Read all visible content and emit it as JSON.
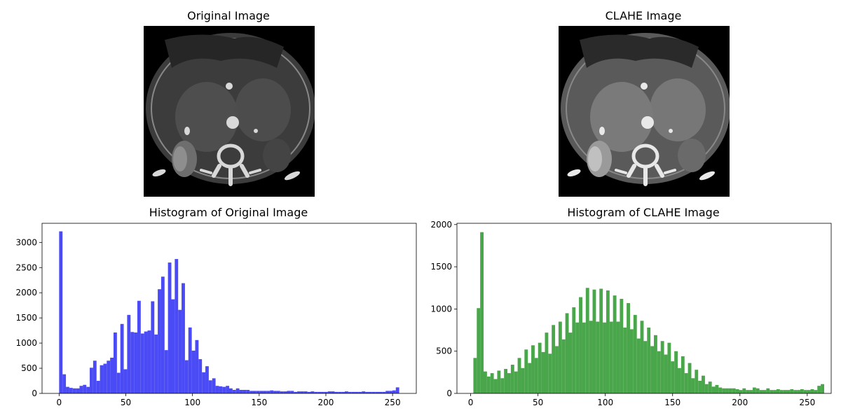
{
  "chart_data": [
    {
      "type": "image",
      "title": "Original Image"
    },
    {
      "type": "image",
      "title": "CLAHE Image"
    },
    {
      "type": "bar",
      "title": "Histogram of Original Image",
      "xlabel": "",
      "ylabel": "",
      "xlim": [
        -12.8,
        267.8
      ],
      "ylim": [
        0,
        3380
      ],
      "xticks": [
        0,
        50,
        100,
        150,
        200,
        250
      ],
      "yticks": [
        0,
        500,
        1000,
        1500,
        2000,
        2500,
        3000
      ],
      "bin_width": 2.55,
      "color": "#4b4bf6",
      "bin_start": 0,
      "values": [
        3220,
        380,
        130,
        110,
        100,
        100,
        150,
        170,
        130,
        510,
        650,
        250,
        560,
        590,
        650,
        710,
        1210,
        410,
        1380,
        480,
        1560,
        1220,
        1210,
        1840,
        1190,
        1230,
        1250,
        1830,
        1170,
        2070,
        2320,
        860,
        2600,
        1870,
        2670,
        1660,
        2190,
        660,
        1310,
        850,
        1060,
        680,
        420,
        540,
        260,
        300,
        150,
        140,
        130,
        150,
        100,
        70,
        100,
        70,
        70,
        70,
        50,
        50,
        50,
        50,
        50,
        50,
        60,
        50,
        50,
        40,
        40,
        50,
        50,
        30,
        40,
        40,
        40,
        30,
        40,
        30,
        30,
        30,
        30,
        40,
        40,
        30,
        30,
        30,
        40,
        30,
        30,
        30,
        30,
        40,
        30,
        30,
        30,
        30,
        30,
        30,
        50,
        50,
        60,
        120
      ]
    },
    {
      "type": "bar",
      "title": "Histogram of CLAHE Image",
      "xlabel": "",
      "ylabel": "",
      "xlim": [
        -10.2,
        267.8
      ],
      "ylim": [
        0,
        2015
      ],
      "xticks": [
        0,
        50,
        100,
        150,
        200,
        250
      ],
      "yticks": [
        0,
        500,
        1000,
        1500,
        2000
      ],
      "bin_width": 2.53,
      "color": "#4aa64a",
      "bin_start": 2,
      "values": [
        420,
        1010,
        1910,
        260,
        200,
        240,
        170,
        270,
        180,
        290,
        240,
        340,
        260,
        420,
        300,
        520,
        360,
        570,
        420,
        600,
        490,
        720,
        470,
        810,
        560,
        850,
        640,
        950,
        720,
        1020,
        840,
        1140,
        840,
        1250,
        860,
        1230,
        850,
        1240,
        840,
        1220,
        850,
        1160,
        850,
        1120,
        780,
        1070,
        760,
        930,
        650,
        860,
        620,
        780,
        560,
        690,
        500,
        620,
        460,
        600,
        380,
        500,
        300,
        440,
        240,
        360,
        180,
        280,
        150,
        210,
        110,
        140,
        80,
        100,
        70,
        60,
        60,
        60,
        60,
        50,
        40,
        60,
        40,
        40,
        70,
        60,
        40,
        40,
        60,
        40,
        40,
        50,
        40,
        40,
        40,
        50,
        40,
        40,
        50,
        40,
        40,
        50,
        40,
        90,
        110
      ]
    }
  ]
}
